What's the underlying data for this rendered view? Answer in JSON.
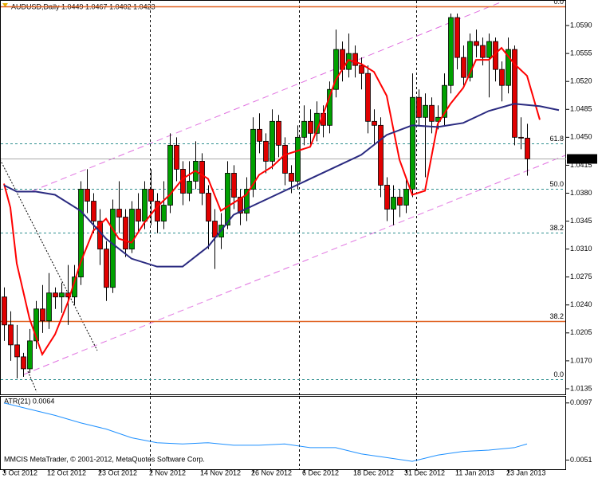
{
  "chart_data": [
    {
      "type": "candlestick",
      "title": "AUDUSD,Daily  1.0449 1.0467 1.0402 1.0423",
      "footer": "MMCIS MetaTrader, © 2001-2012, MetaQuotes Software Corp.",
      "categories": [
        "3 Oct 2012",
        null,
        null,
        null,
        null,
        null,
        null,
        "12 Oct 2012",
        null,
        null,
        null,
        null,
        null,
        null,
        null,
        "23 Oct 2012",
        null,
        null,
        null,
        null,
        null,
        null,
        null,
        "2 Nov 2012",
        null,
        null,
        null,
        null,
        null,
        null,
        null,
        "14 Nov 2012",
        null,
        null,
        null,
        null,
        null,
        null,
        null,
        "26 Nov 2012",
        null,
        null,
        null,
        null,
        null,
        null,
        null,
        "6 Dec 2012",
        null,
        null,
        null,
        null,
        null,
        null,
        null,
        "18 Dec 2012",
        null,
        null,
        null,
        null,
        null,
        null,
        null,
        "31 Dec 2012",
        null,
        null,
        null,
        null,
        null,
        null,
        null,
        "11 Jan 2013",
        null,
        null,
        null,
        null,
        null,
        null,
        null,
        "23 Jan 2013",
        null,
        null,
        null
      ],
      "open": [
        1.025,
        1.0215,
        1.019,
        1.0175,
        1.016,
        1.0195,
        1.0235,
        1.022,
        1.0255,
        1.025,
        1.0255,
        1.025,
        1.0275,
        1.0385,
        1.037,
        1.0345,
        1.031,
        1.0262,
        1.036,
        1.035,
        1.031,
        1.036,
        1.0345,
        1.0385,
        1.037,
        1.0345,
        1.0365,
        1.044,
        1.041,
        1.038,
        1.0395,
        1.042,
        1.038,
        1.0345,
        1.0325,
        1.034,
        1.0405,
        1.0375,
        1.0355,
        1.0385,
        1.046,
        1.0445,
        1.042,
        1.047,
        1.044,
        1.0405,
        1.0395,
        1.045,
        1.047,
        1.0455,
        1.048,
        1.0465,
        1.051,
        1.056,
        1.0535,
        1.0555,
        1.054,
        1.053,
        1.047,
        1.0465,
        1.039,
        1.036,
        1.0375,
        1.0365,
        1.0385,
        1.05,
        1.0475,
        1.049,
        1.047,
        1.0475,
        1.0515,
        1.06,
        1.055,
        1.0525,
        1.057,
        1.0565,
        1.055,
        1.057,
        1.0535,
        1.0515,
        1.056,
        1.045,
        1.0449
      ],
      "close": [
        1.0215,
        1.019,
        1.0175,
        1.016,
        1.0195,
        1.0235,
        1.022,
        1.0255,
        1.025,
        1.0255,
        1.025,
        1.0275,
        1.0385,
        1.037,
        1.0345,
        1.031,
        1.0262,
        1.036,
        1.035,
        1.031,
        1.036,
        1.0345,
        1.0385,
        1.037,
        1.0345,
        1.0365,
        1.044,
        1.041,
        1.038,
        1.0395,
        1.042,
        1.038,
        1.0345,
        1.0325,
        1.034,
        1.0405,
        1.0375,
        1.0355,
        1.0385,
        1.046,
        1.0445,
        1.042,
        1.047,
        1.044,
        1.0405,
        1.0395,
        1.045,
        1.047,
        1.0455,
        1.048,
        1.0465,
        1.051,
        1.056,
        1.0535,
        1.0555,
        1.054,
        1.053,
        1.047,
        1.0465,
        1.039,
        1.036,
        1.0375,
        1.0365,
        1.0385,
        1.05,
        1.0475,
        1.049,
        1.047,
        1.0475,
        1.0515,
        1.06,
        1.055,
        1.0525,
        1.057,
        1.0565,
        1.055,
        1.057,
        1.0535,
        1.0515,
        1.056,
        1.045,
        1.0449,
        1.0423
      ],
      "high": [
        1.0262,
        1.0232,
        1.0215,
        1.018,
        1.021,
        1.0245,
        1.0265,
        1.028,
        1.0262,
        1.0268,
        1.029,
        1.029,
        1.0395,
        1.041,
        1.038,
        1.036,
        1.032,
        1.0372,
        1.0395,
        1.036,
        1.037,
        1.038,
        1.0395,
        1.041,
        1.038,
        1.0395,
        1.0455,
        1.045,
        1.042,
        1.042,
        1.0445,
        1.043,
        1.039,
        1.036,
        1.0355,
        1.042,
        1.0415,
        1.0385,
        1.04,
        1.0475,
        1.048,
        1.0455,
        1.0485,
        1.0478,
        1.045,
        1.0415,
        1.0465,
        1.049,
        1.0485,
        1.0495,
        1.049,
        1.052,
        1.0585,
        1.057,
        1.058,
        1.0565,
        1.055,
        1.054,
        1.0485,
        1.0475,
        1.04,
        1.039,
        1.0385,
        1.04,
        1.053,
        1.051,
        1.0505,
        1.05,
        1.049,
        1.053,
        1.0605,
        1.0605,
        1.0565,
        1.058,
        1.0585,
        1.0575,
        1.058,
        1.0575,
        1.0545,
        1.0575,
        1.0565,
        1.0475,
        1.0467
      ],
      "low": [
        1.0195,
        1.017,
        1.0148,
        1.015,
        1.0155,
        1.0185,
        1.0205,
        1.021,
        1.0235,
        1.023,
        1.0215,
        1.024,
        1.0265,
        1.0355,
        1.033,
        1.029,
        1.0245,
        1.0255,
        1.033,
        1.03,
        1.0305,
        1.033,
        1.0335,
        1.034,
        1.033,
        1.0335,
        1.0355,
        1.0395,
        1.0365,
        1.037,
        1.0385,
        1.0365,
        1.031,
        1.0285,
        1.031,
        1.0335,
        1.036,
        1.034,
        1.0345,
        1.0375,
        1.043,
        1.0405,
        1.041,
        1.0425,
        1.039,
        1.038,
        1.0385,
        1.044,
        1.044,
        1.0445,
        1.045,
        1.0455,
        1.05,
        1.052,
        1.0525,
        1.0525,
        1.051,
        1.0455,
        1.044,
        1.0375,
        1.0345,
        1.034,
        1.035,
        1.0355,
        1.0375,
        1.0465,
        1.04,
        1.0455,
        1.046,
        1.0465,
        1.0505,
        1.0535,
        1.0515,
        1.052,
        1.055,
        1.054,
        1.05,
        1.052,
        1.0495,
        1.0505,
        1.044,
        1.0435,
        1.0402
      ],
      "up_color": "#00a000",
      "down_color": "#e00000",
      "ylim": [
        1.0128,
        1.0622
      ],
      "yticks": [
        {
          "value": 1.059,
          "label": "1.0590"
        },
        {
          "value": 1.0555,
          "label": "1.0555"
        },
        {
          "value": 1.052,
          "label": "1.0520"
        },
        {
          "value": 1.0485,
          "label": "1.0485"
        },
        {
          "value": 1.045,
          "label": "1.0450"
        },
        {
          "value": 1.0415,
          "label": "1.0415"
        },
        {
          "value": 1.038,
          "label": "1.0380"
        },
        {
          "value": 1.0345,
          "label": "1.0345"
        },
        {
          "value": 1.031,
          "label": "1.0310"
        },
        {
          "value": 1.0275,
          "label": "1.0275"
        },
        {
          "value": 1.024,
          "label": "1.0240"
        },
        {
          "value": 1.0205,
          "label": "1.0205"
        },
        {
          "value": 1.017,
          "label": "1.0170"
        },
        {
          "value": 1.0135,
          "label": "1.0135"
        }
      ],
      "current_price": 1.0423,
      "levels": [
        {
          "value": 1.0614,
          "label": "0.0",
          "color": "#e06020",
          "dashed": false
        },
        {
          "value": 1.0442,
          "label": "61.8",
          "color": "#2f8f8f",
          "dashed": true
        },
        {
          "value": 1.0385,
          "label": "50.0",
          "color": "#2f8f8f",
          "dashed": true
        },
        {
          "value": 1.0331,
          "label": "38.2",
          "color": "#2f8f8f",
          "dashed": true
        },
        {
          "value": 1.022,
          "label": "38.2",
          "color": "#e06020",
          "dashed": false
        },
        {
          "value": 1.0147,
          "label": "0.0",
          "color": "#2f8f8f",
          "dashed": true
        }
      ],
      "overlays": [
        {
          "color": "#ff0000",
          "x": [
            0,
            1,
            2,
            4,
            6,
            8,
            10,
            12,
            14,
            16,
            18,
            20,
            22,
            24,
            26,
            28,
            30,
            32,
            34,
            36,
            38,
            40,
            42,
            44,
            46,
            48,
            50,
            52,
            54,
            56,
            58,
            60,
            62,
            64,
            66,
            68,
            70,
            72,
            74,
            76,
            78,
            80,
            82,
            84
          ],
          "values": [
            1.0392,
            1.0362,
            1.0292,
            1.0223,
            1.0178,
            1.0203,
            1.0243,
            1.0293,
            1.0333,
            1.0348,
            1.0323,
            1.0318,
            1.0343,
            1.0363,
            1.0378,
            1.0398,
            1.0408,
            1.0398,
            1.0358,
            1.0368,
            1.0378,
            1.0403,
            1.0413,
            1.0428,
            1.0433,
            1.0438,
            1.0478,
            1.0522,
            1.0547,
            1.0542,
            1.0532,
            1.0502,
            1.0422,
            1.0378,
            1.0383,
            1.0467,
            1.0492,
            1.0512,
            1.0547,
            1.0547,
            1.0562,
            1.0542,
            1.0527,
            1.0472
          ]
        },
        {
          "color": "#2a2a80",
          "x": [
            0,
            2,
            5,
            8,
            12,
            16,
            20,
            24,
            28,
            32,
            36,
            40,
            44,
            48,
            52,
            56,
            60,
            64,
            68,
            72,
            76,
            80,
            84,
            87
          ],
          "values": [
            1.039,
            1.0382,
            1.0382,
            1.0378,
            1.0358,
            1.0323,
            1.0298,
            1.0288,
            1.0288,
            1.0313,
            1.0353,
            1.0368,
            1.0383,
            1.0398,
            1.0413,
            1.0428,
            1.0453,
            1.0465,
            1.0463,
            1.0468,
            1.0483,
            1.0492,
            1.0489,
            1.0484
          ]
        }
      ]
    },
    {
      "type": "line",
      "title": "ATR(21) 0.0064",
      "color": "#1e90ff",
      "x": [
        0,
        4,
        8,
        12,
        16,
        20,
        24,
        28,
        32,
        36,
        40,
        44,
        48,
        52,
        56,
        60,
        64,
        68,
        72,
        76,
        80,
        82
      ],
      "values": [
        0.0097,
        0.0092,
        0.0087,
        0.0081,
        0.0076,
        0.0069,
        0.0065,
        0.0064,
        0.0065,
        0.0063,
        0.0063,
        0.0064,
        0.0061,
        0.0061,
        0.0056,
        0.0053,
        0.005,
        0.0055,
        0.0058,
        0.0059,
        0.0061,
        0.0064
      ],
      "ylim": [
        0.0043,
        0.0102
      ],
      "yticks": [
        0.0097,
        0.0051
      ]
    }
  ]
}
